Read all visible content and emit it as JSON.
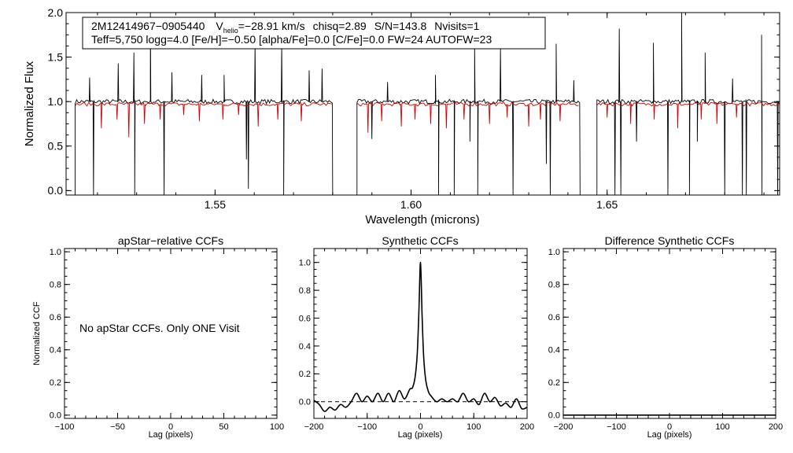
{
  "chart_data": [
    {
      "type": "line",
      "annotation": {
        "line1_star": "2M12414967−0905440",
        "line1_vhelio_v": "V",
        "line1_vhelio_sub": "helio",
        "line1_vhelio_value": "=−28.91 km/s",
        "line1_chisq": "chisq=2.89",
        "line1_sn": "S/N=143.8",
        "line1_nvisits": "Nvisits=1",
        "line2": "Teff=5,750 logg=4.0 [Fe/H]=−0.50 [alpha/Fe]=0.0 [C/Fe]=0.0 FW=24 AUTOFW=23"
      },
      "xlabel": "Wavelength (microns)",
      "ylabel": "Normalized Flux",
      "xlim": [
        1.512,
        1.694
      ],
      "ylim": [
        -0.05,
        2.0
      ],
      "xticks": [
        1.55,
        1.6,
        1.65
      ],
      "xtick_labels": [
        "1.55",
        "1.60",
        "1.65"
      ],
      "yticks": [
        0.0,
        0.5,
        1.0,
        1.5,
        2.0
      ],
      "ytick_labels": [
        "0.0",
        "0.5",
        "1.0",
        "1.5",
        "2.0"
      ],
      "chips": [
        [
          1.5143,
          1.58
        ],
        [
          1.5862,
          1.6431
        ],
        [
          1.6474,
          1.6955
        ]
      ],
      "series": [
        {
          "color": "#000000",
          "baseline": 1.0,
          "emission_spikes": [
            [
              1.518,
              1.27
            ],
            [
              1.5253,
              1.43
            ],
            [
              1.5293,
              1.55
            ],
            [
              1.5335,
              2.0
            ],
            [
              1.539,
              1.33
            ],
            [
              1.5466,
              1.3
            ],
            [
              1.5523,
              1.3
            ],
            [
              1.5602,
              1.65
            ],
            [
              1.567,
              1.65
            ],
            [
              1.574,
              1.35
            ],
            [
              1.5773,
              1.37
            ],
            [
              1.594,
              1.22
            ],
            [
              1.6062,
              1.3
            ],
            [
              1.6162,
              1.65
            ],
            [
              1.6228,
              1.6
            ],
            [
              1.637,
              1.65
            ],
            [
              1.6415,
              1.24
            ],
            [
              1.6531,
              1.82
            ],
            [
              1.6618,
              1.66
            ],
            [
              1.669,
              2.0
            ],
            [
              1.675,
              1.55
            ],
            [
              1.682,
              1.26
            ],
            [
              1.6894,
              1.75
            ]
          ],
          "absorption_lines": [
            [
              1.519,
              -0.05
            ],
            [
              1.5295,
              -0.05
            ],
            [
              1.537,
              -0.05
            ],
            [
              1.5585,
              0.02
            ],
            [
              1.5675,
              -0.05
            ],
            [
              1.558,
              0.35
            ],
            [
              1.59,
              0.58
            ],
            [
              1.607,
              -0.05
            ],
            [
              1.611,
              -0.05
            ],
            [
              1.615,
              0.55
            ],
            [
              1.617,
              -0.05
            ],
            [
              1.626,
              -0.05
            ],
            [
              1.6345,
              0.3
            ],
            [
              1.6355,
              -0.05
            ],
            [
              1.6435,
              -0.05
            ],
            [
              1.652,
              -0.05
            ],
            [
              1.6535,
              -0.05
            ],
            [
              1.6575,
              0.55
            ],
            [
              1.6655,
              -0.05
            ],
            [
              1.671,
              -0.05
            ],
            [
              1.673,
              0.55
            ],
            [
              1.68,
              -0.05
            ],
            [
              1.6845,
              -0.05
            ],
            [
              1.6855,
              -0.05
            ],
            [
              1.6895,
              -0.05
            ],
            [
              1.6935,
              -0.05
            ]
          ]
        },
        {
          "color": "#cc0000",
          "baseline": 0.97,
          "model_lines": [
            [
              1.521,
              0.7
            ],
            [
              1.525,
              0.8
            ],
            [
              1.528,
              0.6
            ],
            [
              1.532,
              0.75
            ],
            [
              1.536,
              0.8
            ],
            [
              1.542,
              0.85
            ],
            [
              1.546,
              0.78
            ],
            [
              1.552,
              0.8
            ],
            [
              1.556,
              0.85
            ],
            [
              1.561,
              0.72
            ],
            [
              1.566,
              0.8
            ],
            [
              1.572,
              0.78
            ],
            [
              1.589,
              0.65
            ],
            [
              1.5925,
              0.78
            ],
            [
              1.5975,
              0.72
            ],
            [
              1.601,
              0.8
            ],
            [
              1.605,
              0.75
            ],
            [
              1.609,
              0.7
            ],
            [
              1.6135,
              0.8
            ],
            [
              1.62,
              0.75
            ],
            [
              1.6245,
              0.82
            ],
            [
              1.63,
              0.72
            ],
            [
              1.633,
              0.8
            ],
            [
              1.638,
              0.78
            ],
            [
              1.65,
              0.82
            ],
            [
              1.656,
              0.75
            ],
            [
              1.662,
              0.8
            ],
            [
              1.668,
              0.7
            ],
            [
              1.674,
              0.8
            ],
            [
              1.678,
              0.75
            ],
            [
              1.683,
              0.82
            ]
          ]
        }
      ]
    },
    {
      "type": "line",
      "title": "apStar−relative CCFs",
      "xlabel": "Lag (pixels)",
      "ylabel": "Normalized CCF",
      "xlim": [
        -100,
        100
      ],
      "ylim": [
        -0.02,
        1.02
      ],
      "xticks": [
        -100,
        -50,
        0,
        50,
        100
      ],
      "xtick_labels": [
        "−100",
        "−50",
        "0",
        "50",
        "100"
      ],
      "yticks": [
        0.0,
        0.2,
        0.4,
        0.6,
        0.8,
        1.0
      ],
      "ytick_labels": [
        "0.0",
        "0.2",
        "0.4",
        "0.6",
        "0.8",
        "1.0"
      ],
      "message": "No apStar CCFs.  Only ONE Visit",
      "series": []
    },
    {
      "type": "line",
      "title": "Synthetic CCFs",
      "xlabel": "Lag (pixels)",
      "xlim": [
        -200,
        200
      ],
      "ylim": [
        -0.12,
        1.1
      ],
      "xticks": [
        -200,
        -100,
        0,
        100,
        200
      ],
      "xtick_labels": [
        "−200",
        "−100",
        "0",
        "100",
        "200"
      ],
      "yticks": [
        0.0,
        0.2,
        0.4,
        0.6,
        0.8,
        1.0
      ],
      "ytick_labels": [
        "0.0",
        "0.2",
        "0.4",
        "0.6",
        "0.8",
        "1.0"
      ],
      "reference_line": 0.0,
      "series": [
        {
          "color": "#000000",
          "x": [
            -200,
            -190,
            -180,
            -170,
            -160,
            -150,
            -140,
            -130,
            -120,
            -110,
            -100,
            -90,
            -80,
            -70,
            -60,
            -50,
            -40,
            -30,
            -20,
            -15,
            -10,
            -6,
            -3,
            0,
            3,
            6,
            10,
            15,
            20,
            30,
            40,
            50,
            60,
            70,
            80,
            90,
            100,
            110,
            120,
            130,
            140,
            150,
            160,
            170,
            180,
            190,
            200
          ],
          "y": [
            0.01,
            -0.02,
            -0.07,
            -0.04,
            -0.06,
            -0.02,
            -0.04,
            0.0,
            0.06,
            0.0,
            0.04,
            0.0,
            0.06,
            0.0,
            0.06,
            0.0,
            0.08,
            0.02,
            0.09,
            0.1,
            0.18,
            0.35,
            0.65,
            1.0,
            0.62,
            0.32,
            0.15,
            0.07,
            0.04,
            0.0,
            0.02,
            0.0,
            0.02,
            0.0,
            0.06,
            0.0,
            0.02,
            -0.02,
            0.06,
            0.0,
            0.03,
            -0.03,
            -0.01,
            -0.04,
            0.02,
            -0.05,
            -0.04
          ]
        }
      ]
    },
    {
      "type": "line",
      "title": "Difference Synthetic CCFs",
      "xlabel": "Lag (pixels)",
      "xlim": [
        -200,
        200
      ],
      "ylim": [
        -0.02,
        1.02
      ],
      "xticks": [
        -200,
        -100,
        0,
        100,
        200
      ],
      "xtick_labels": [
        "−200",
        "−100",
        "0",
        "100",
        "200"
      ],
      "yticks": [
        0.0,
        0.2,
        0.4,
        0.6,
        0.8,
        1.0
      ],
      "ytick_labels": [
        "0.0",
        "0.2",
        "0.4",
        "0.6",
        "0.8",
        "1.0"
      ],
      "series": [
        {
          "color": "#000000",
          "x": [
            -200,
            200
          ],
          "y": [
            0.0,
            0.0
          ]
        }
      ]
    }
  ]
}
